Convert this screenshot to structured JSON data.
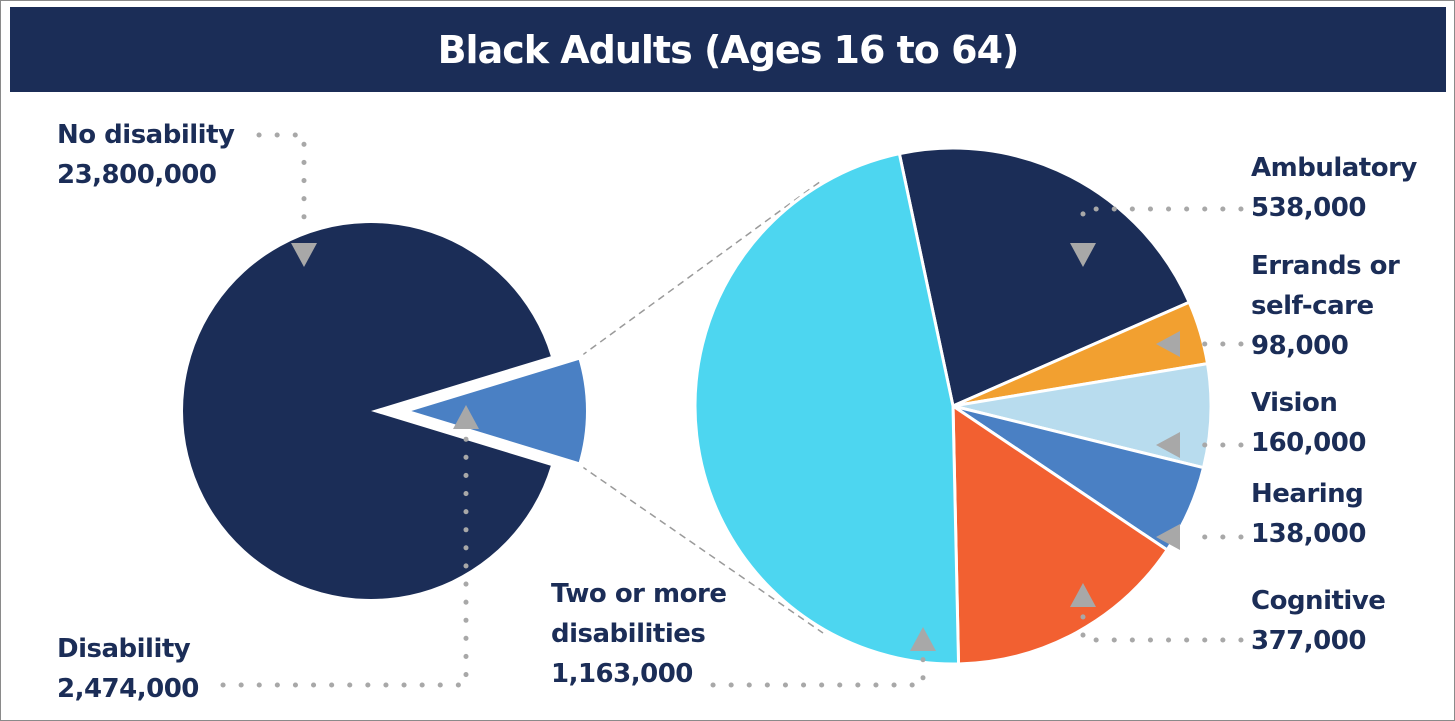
{
  "title": "Black Adults (Ages 16 to 64)",
  "colors": {
    "header_bg": "#1b2d57",
    "text": "#1b2d57",
    "no_disability": "#1b2d57",
    "disability": "#4a80c4",
    "ambulatory": "#1b2d57",
    "errands": "#f2a030",
    "vision": "#b8dcee",
    "hearing": "#4a80c4",
    "cognitive": "#f26031",
    "two_or_more": "#4dd6f0",
    "leader": "#a8a8a8"
  },
  "labels": {
    "no_disability": {
      "name": "No disability",
      "value": "23,800,000"
    },
    "disability": {
      "name": "Disability",
      "value": "2,474,000"
    },
    "ambulatory": {
      "name": "Ambulatory",
      "value": "538,000"
    },
    "errands": {
      "name1": "Errands or",
      "name2": "self-care",
      "value": "98,000"
    },
    "vision": {
      "name": "Vision",
      "value": "160,000"
    },
    "hearing": {
      "name": "Hearing",
      "value": "138,000"
    },
    "cognitive": {
      "name": "Cognitive",
      "value": "377,000"
    },
    "two_or_more": {
      "name1": "Two or more",
      "name2": "disabilities",
      "value": "1,163,000"
    }
  },
  "chart_data": [
    {
      "type": "pie",
      "categories": [
        "No disability",
        "Disability"
      ],
      "values": [
        23800000,
        2474000
      ]
    },
    {
      "type": "pie",
      "categories": [
        "Ambulatory",
        "Errands or self-care",
        "Vision",
        "Hearing",
        "Cognitive",
        "Two or more disabilities"
      ],
      "values": [
        538000,
        98000,
        160000,
        138000,
        377000,
        1163000
      ]
    }
  ]
}
